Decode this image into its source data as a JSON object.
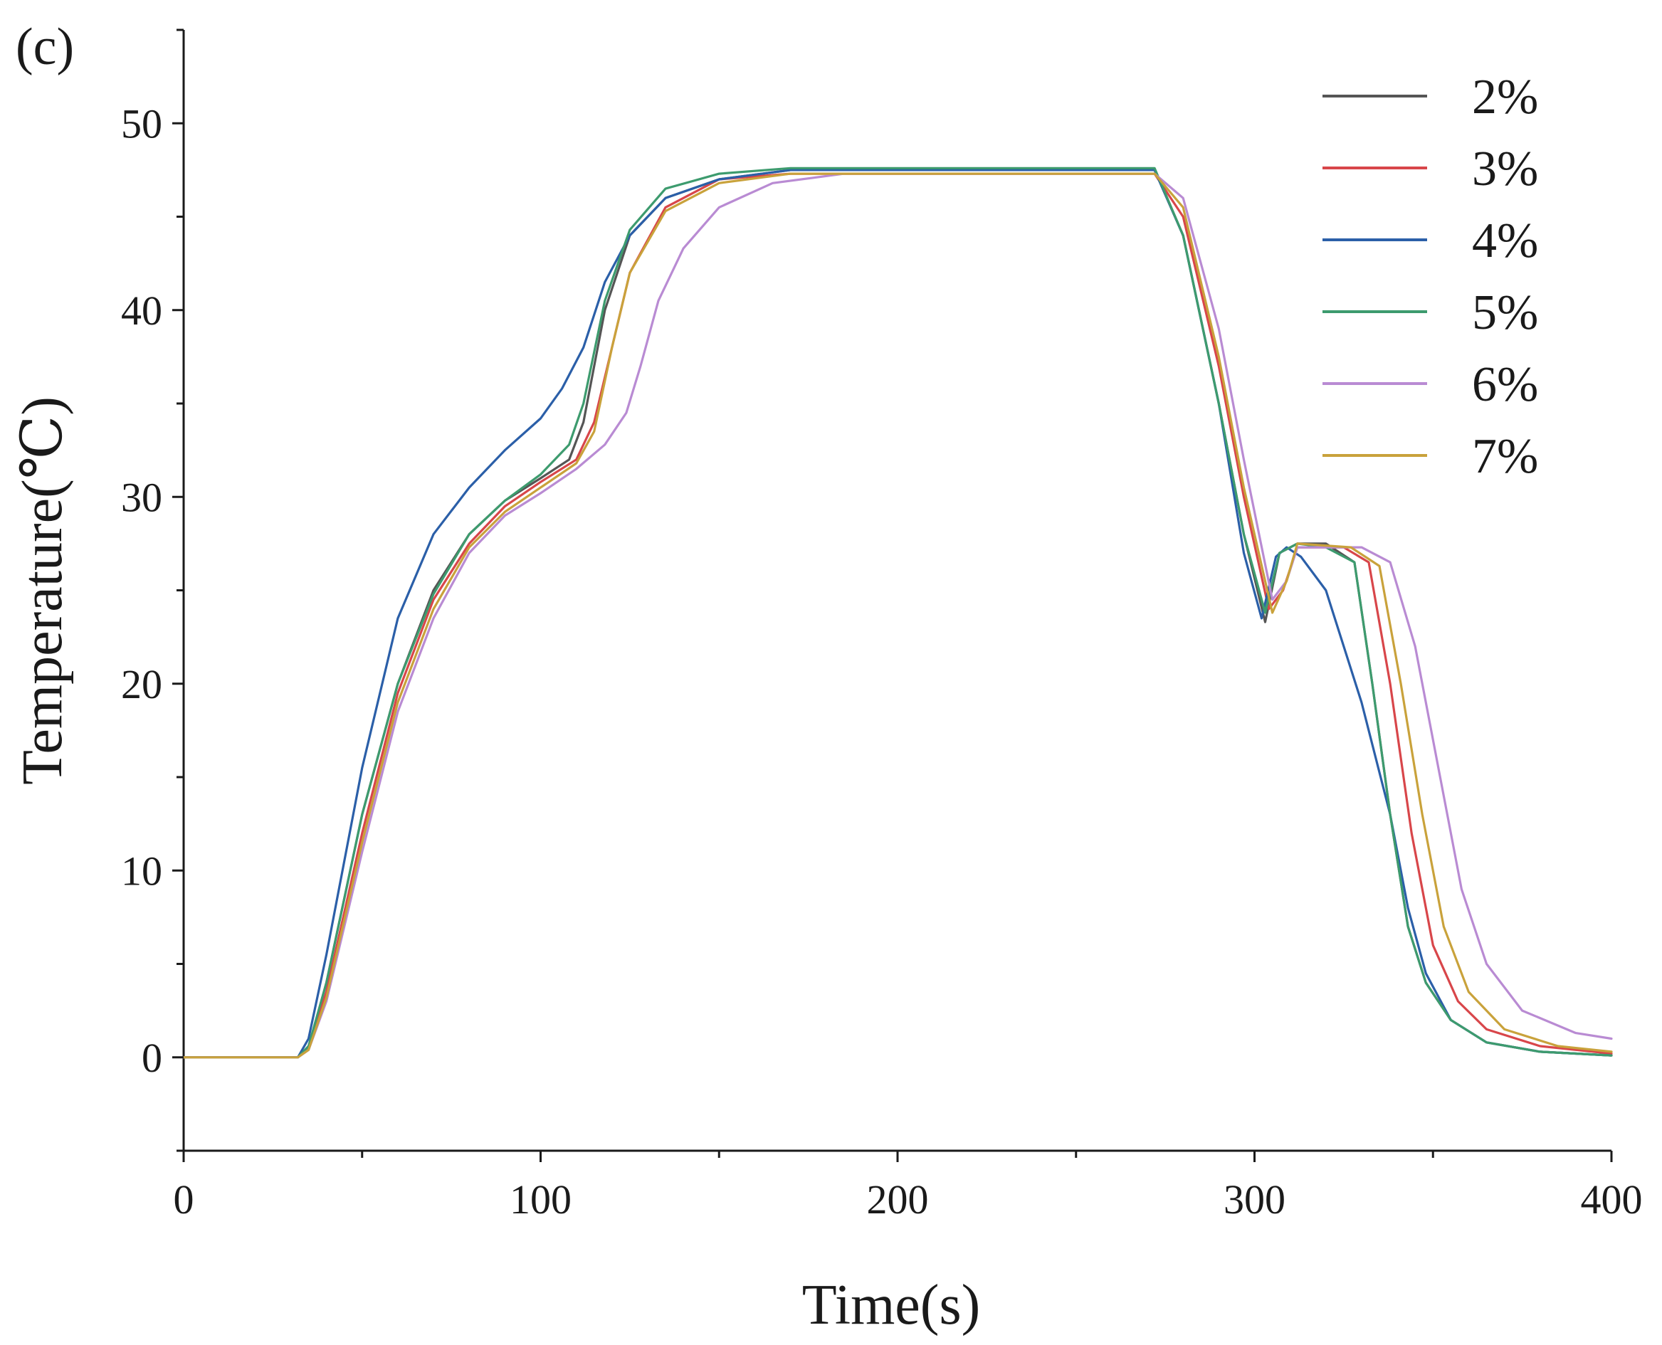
{
  "panel_label": "(c)",
  "chart_data": {
    "type": "line",
    "xlabel": "Time(s)",
    "ylabel": "Temperature(℃)",
    "xlim": [
      0,
      400
    ],
    "ylim": [
      -5,
      55
    ],
    "xticks": [
      0,
      100,
      200,
      300,
      400
    ],
    "yticks": [
      0,
      10,
      20,
      30,
      40,
      50
    ],
    "x_minor_step": 50,
    "y_minor_step": 5,
    "legend_position": "top-right",
    "grid": false,
    "series": [
      {
        "name": "2%",
        "color": "#555555",
        "points": [
          [
            0,
            0
          ],
          [
            32,
            0
          ],
          [
            35,
            0.5
          ],
          [
            40,
            4
          ],
          [
            50,
            13
          ],
          [
            60,
            20
          ],
          [
            70,
            25
          ],
          [
            80,
            28
          ],
          [
            90,
            29.8
          ],
          [
            100,
            31
          ],
          [
            108,
            32
          ],
          [
            112,
            34
          ],
          [
            118,
            40
          ],
          [
            125,
            44
          ],
          [
            135,
            46
          ],
          [
            150,
            47
          ],
          [
            170,
            47.5
          ],
          [
            200,
            47.5
          ],
          [
            272,
            47.5
          ],
          [
            280,
            44
          ],
          [
            290,
            35
          ],
          [
            297,
            28
          ],
          [
            303,
            23.3
          ],
          [
            307,
            27
          ],
          [
            312,
            27.5
          ],
          [
            320,
            27.5
          ],
          [
            328,
            26.5
          ],
          [
            333,
            20
          ],
          [
            338,
            13
          ],
          [
            343,
            7
          ],
          [
            348,
            4
          ],
          [
            355,
            2
          ],
          [
            365,
            0.8
          ],
          [
            380,
            0.3
          ],
          [
            400,
            0.1
          ]
        ]
      },
      {
        "name": "3%",
        "color": "#d8464a",
        "points": [
          [
            0,
            0
          ],
          [
            32,
            0
          ],
          [
            35,
            0.5
          ],
          [
            40,
            3.5
          ],
          [
            50,
            12
          ],
          [
            60,
            19.5
          ],
          [
            70,
            24.5
          ],
          [
            80,
            27.5
          ],
          [
            90,
            29.5
          ],
          [
            100,
            30.8
          ],
          [
            110,
            32
          ],
          [
            115,
            34
          ],
          [
            120,
            38
          ],
          [
            125,
            42
          ],
          [
            135,
            45.5
          ],
          [
            150,
            47
          ],
          [
            170,
            47.3
          ],
          [
            200,
            47.3
          ],
          [
            272,
            47.3
          ],
          [
            280,
            45
          ],
          [
            290,
            37
          ],
          [
            297,
            30
          ],
          [
            304,
            24
          ],
          [
            308,
            25
          ],
          [
            312,
            27.3
          ],
          [
            325,
            27.3
          ],
          [
            332,
            26.5
          ],
          [
            338,
            20
          ],
          [
            344,
            12
          ],
          [
            350,
            6
          ],
          [
            357,
            3
          ],
          [
            365,
            1.5
          ],
          [
            380,
            0.6
          ],
          [
            400,
            0.2
          ]
        ]
      },
      {
        "name": "4%",
        "color": "#2b5fa8",
        "points": [
          [
            0,
            0
          ],
          [
            32,
            0
          ],
          [
            35,
            1
          ],
          [
            40,
            5.5
          ],
          [
            50,
            15.5
          ],
          [
            60,
            23.5
          ],
          [
            70,
            28
          ],
          [
            80,
            30.5
          ],
          [
            90,
            32.5
          ],
          [
            100,
            34.2
          ],
          [
            106,
            35.8
          ],
          [
            112,
            38
          ],
          [
            118,
            41.5
          ],
          [
            125,
            44
          ],
          [
            135,
            46
          ],
          [
            150,
            47
          ],
          [
            170,
            47.5
          ],
          [
            200,
            47.5
          ],
          [
            272,
            47.5
          ],
          [
            280,
            44
          ],
          [
            290,
            35
          ],
          [
            297,
            27
          ],
          [
            302,
            23.5
          ],
          [
            306,
            26.8
          ],
          [
            309,
            27.3
          ],
          [
            313,
            26.8
          ],
          [
            320,
            25
          ],
          [
            330,
            19
          ],
          [
            338,
            13
          ],
          [
            343,
            8
          ],
          [
            348,
            4.5
          ],
          [
            355,
            2
          ],
          [
            365,
            0.8
          ],
          [
            380,
            0.3
          ],
          [
            400,
            0.1
          ]
        ]
      },
      {
        "name": "5%",
        "color": "#3d9b6e",
        "points": [
          [
            0,
            0
          ],
          [
            32,
            0
          ],
          [
            35,
            0.6
          ],
          [
            40,
            4
          ],
          [
            50,
            13
          ],
          [
            60,
            20
          ],
          [
            70,
            24.8
          ],
          [
            80,
            28
          ],
          [
            90,
            29.8
          ],
          [
            100,
            31.2
          ],
          [
            108,
            32.8
          ],
          [
            112,
            35
          ],
          [
            118,
            40.5
          ],
          [
            125,
            44.3
          ],
          [
            135,
            46.5
          ],
          [
            150,
            47.3
          ],
          [
            170,
            47.6
          ],
          [
            200,
            47.6
          ],
          [
            272,
            47.6
          ],
          [
            280,
            44
          ],
          [
            290,
            35
          ],
          [
            297,
            28
          ],
          [
            303,
            23.8
          ],
          [
            307,
            27
          ],
          [
            312,
            27.5
          ],
          [
            320,
            27.3
          ],
          [
            328,
            26.5
          ],
          [
            333,
            20
          ],
          [
            338,
            13
          ],
          [
            343,
            7
          ],
          [
            348,
            4
          ],
          [
            355,
            2
          ],
          [
            365,
            0.8
          ],
          [
            380,
            0.3
          ],
          [
            400,
            0.1
          ]
        ]
      },
      {
        "name": "6%",
        "color": "#b98bd3",
        "points": [
          [
            0,
            0
          ],
          [
            32,
            0
          ],
          [
            35,
            0.4
          ],
          [
            40,
            3
          ],
          [
            50,
            11
          ],
          [
            60,
            18.5
          ],
          [
            70,
            23.5
          ],
          [
            80,
            27
          ],
          [
            90,
            29
          ],
          [
            100,
            30.2
          ],
          [
            110,
            31.5
          ],
          [
            118,
            32.8
          ],
          [
            124,
            34.5
          ],
          [
            128,
            37
          ],
          [
            133,
            40.5
          ],
          [
            140,
            43.3
          ],
          [
            150,
            45.5
          ],
          [
            165,
            46.8
          ],
          [
            185,
            47.3
          ],
          [
            200,
            47.3
          ],
          [
            272,
            47.3
          ],
          [
            280,
            46
          ],
          [
            290,
            39
          ],
          [
            297,
            32
          ],
          [
            305,
            24.5
          ],
          [
            309,
            25.5
          ],
          [
            312,
            27.3
          ],
          [
            330,
            27.3
          ],
          [
            338,
            26.5
          ],
          [
            345,
            22
          ],
          [
            352,
            15
          ],
          [
            358,
            9
          ],
          [
            365,
            5
          ],
          [
            375,
            2.5
          ],
          [
            390,
            1.3
          ],
          [
            400,
            1
          ]
        ]
      },
      {
        "name": "7%",
        "color": "#c9a23b",
        "points": [
          [
            0,
            0
          ],
          [
            32,
            0
          ],
          [
            35,
            0.4
          ],
          [
            40,
            3.2
          ],
          [
            50,
            11.5
          ],
          [
            60,
            19
          ],
          [
            70,
            24
          ],
          [
            80,
            27.3
          ],
          [
            90,
            29.2
          ],
          [
            100,
            30.5
          ],
          [
            110,
            31.8
          ],
          [
            115,
            33.5
          ],
          [
            120,
            38
          ],
          [
            125,
            42
          ],
          [
            135,
            45.3
          ],
          [
            150,
            46.8
          ],
          [
            170,
            47.3
          ],
          [
            200,
            47.3
          ],
          [
            272,
            47.3
          ],
          [
            280,
            45.5
          ],
          [
            290,
            37.5
          ],
          [
            297,
            30.5
          ],
          [
            305,
            23.8
          ],
          [
            309,
            25.5
          ],
          [
            312,
            27.5
          ],
          [
            327,
            27.3
          ],
          [
            335,
            26.3
          ],
          [
            341,
            20
          ],
          [
            347,
            13
          ],
          [
            353,
            7
          ],
          [
            360,
            3.5
          ],
          [
            370,
            1.5
          ],
          [
            385,
            0.6
          ],
          [
            400,
            0.3
          ]
        ]
      }
    ]
  }
}
